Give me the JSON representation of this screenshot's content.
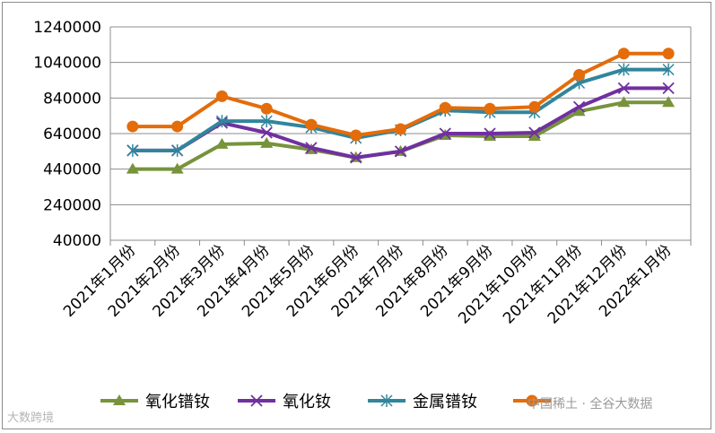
{
  "chart_data": {
    "type": "line",
    "title": "",
    "xlabel": "",
    "ylabel": "",
    "ylim": [
      40000,
      1240000
    ],
    "yticks": [
      40000,
      240000,
      440000,
      640000,
      840000,
      1040000,
      1240000
    ],
    "categories": [
      "2021年1月份",
      "2021年2月份",
      "2021年3月份",
      "2021年4月份",
      "2021年5月份",
      "2021年6月份",
      "2021年7月份",
      "2021年8月份",
      "2021年9月份",
      "2021年10月份",
      "2021年11月份",
      "2021年12月份",
      "2022年1月份"
    ],
    "grid": "horizontal",
    "legend": "bottom",
    "series": [
      {
        "name": "氧化镨钕",
        "color": "#77933c",
        "marker": "triangle",
        "values": [
          440000,
          440000,
          580000,
          585000,
          550000,
          505000,
          540000,
          630000,
          625000,
          625000,
          765000,
          815000,
          815000
        ]
      },
      {
        "name": "氧化钕",
        "color": "#7030a0",
        "marker": "x",
        "values": [
          545000,
          545000,
          700000,
          645000,
          560000,
          505000,
          540000,
          640000,
          640000,
          645000,
          790000,
          895000,
          895000
        ]
      },
      {
        "name": "金属镨钕",
        "color": "#31859c",
        "marker": "star",
        "values": [
          545000,
          545000,
          710000,
          710000,
          675000,
          615000,
          660000,
          770000,
          760000,
          760000,
          925000,
          1000000,
          1000000
        ]
      },
      {
        "name": "",
        "color": "#e46c0a",
        "marker": "circle",
        "values": [
          680000,
          680000,
          850000,
          780000,
          690000,
          630000,
          665000,
          785000,
          780000,
          790000,
          970000,
          1090000,
          1090000
        ]
      }
    ]
  },
  "watermark": {
    "left": "大数跨境",
    "right": "中国稀土 · 全谷大数据"
  }
}
